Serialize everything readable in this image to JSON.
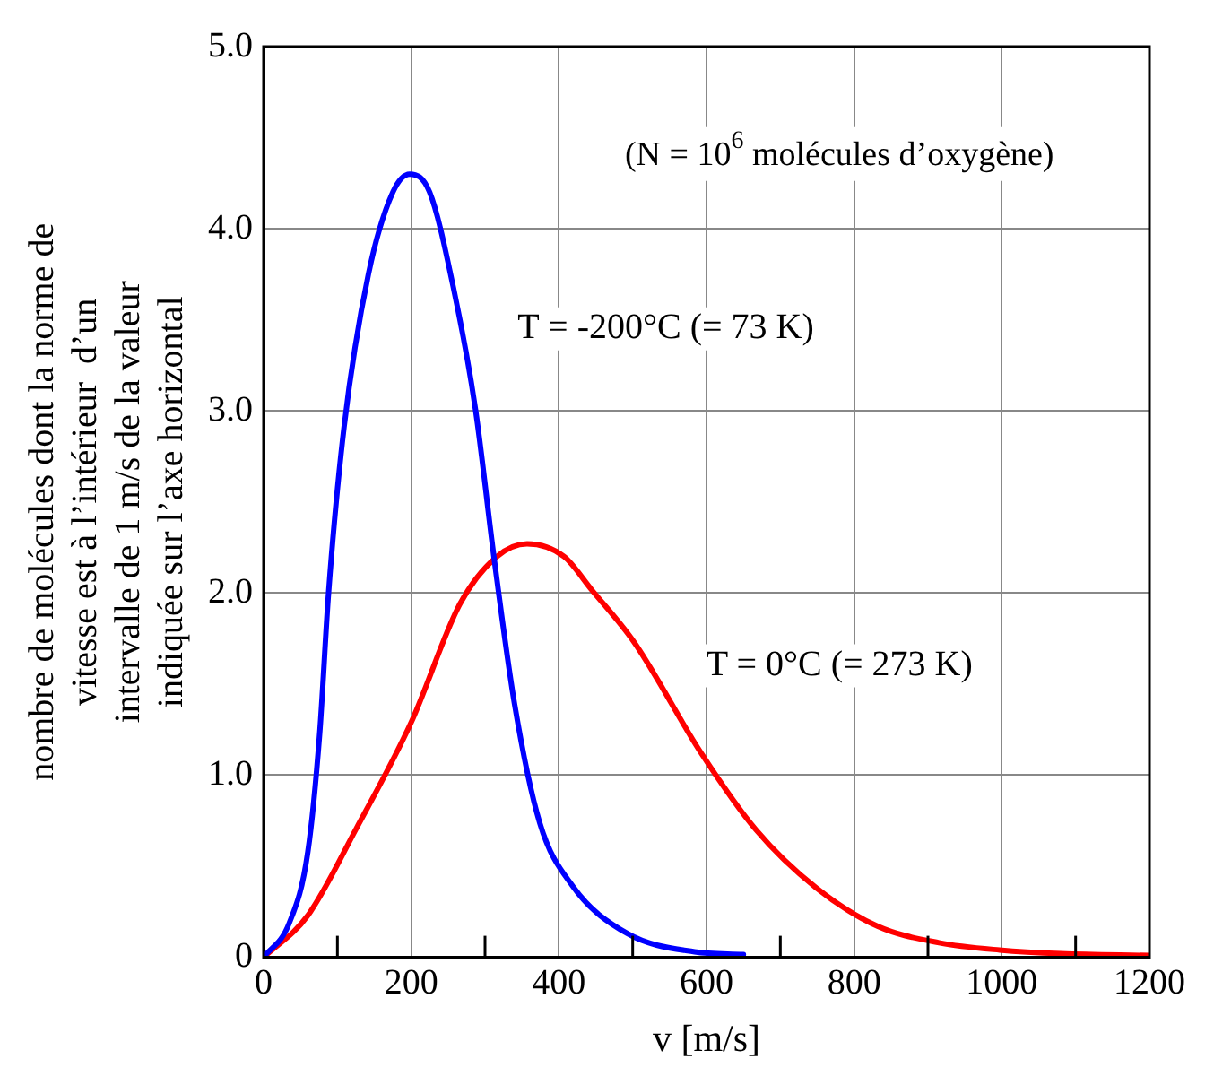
{
  "chart_data": {
    "type": "line",
    "xlabel": "v [m/s]",
    "ylabel": "nombre de molécules dont la norme de vitesse est à l’intérieur  d’un intervalle de 1 m/s de la valeur indiquée sur l’axe horizontal",
    "annotations": [
      "(N = 10$^{6}$ molécules d’oxygène)"
    ],
    "xlim": [
      0,
      1200
    ],
    "xticks": [
      0,
      {
        "value": 100,
        "label": null
      },
      200,
      {
        "value": 300,
        "label": null
      },
      400,
      {
        "value": 500,
        "label": null
      },
      600,
      {
        "value": 700,
        "label": null
      },
      800,
      {
        "value": 900,
        "label": null
      },
      1000,
      {
        "value": 1100,
        "label": null
      },
      1200
    ],
    "ylim": [
      0,
      5
    ],
    "yticks": [
      0,
      {
        "value": 1,
        "label": "1.0"
      },
      {
        "value": 2,
        "label": "2.0"
      },
      {
        "value": 3,
        "label": "3.0"
      },
      {
        "value": 4,
        "label": "4.0"
      },
      {
        "value": 5,
        "label": "5.0"
      }
    ],
    "grid": true,
    "legend": false,
    "marker": "none",
    "line_style": "solid",
    "series": [
      {
        "name": "T = -200°C (= 73 K)",
        "color": "#0000ff",
        "x": [
          0,
          35,
          60,
          76,
          88,
          109,
          142,
          175,
          198,
          225,
          258,
          287,
          312,
          340,
          374,
          419,
          493,
          584,
          650
        ],
        "values": [
          0,
          0.19,
          0.58,
          1.23,
          2.0,
          2.91,
          3.75,
          4.2,
          4.3,
          4.2,
          3.66,
          3.01,
          2.2,
          1.39,
          0.74,
          0.39,
          0.13,
          0.03,
          0.015
        ]
      },
      {
        "name": "T = 0°C (= 273 K)",
        "color": "#ff0000",
        "x": [
          0,
          60,
          126,
          200,
          266,
          316,
          357,
          407,
          444,
          502,
          593,
          667,
          749,
          832,
          915,
          997,
          1080,
          1200
        ],
        "values": [
          0,
          0.23,
          0.71,
          1.29,
          1.94,
          2.2,
          2.27,
          2.2,
          2.02,
          1.73,
          1.12,
          0.7,
          0.38,
          0.17,
          0.08,
          0.04,
          0.02,
          0.01
        ]
      }
    ]
  }
}
